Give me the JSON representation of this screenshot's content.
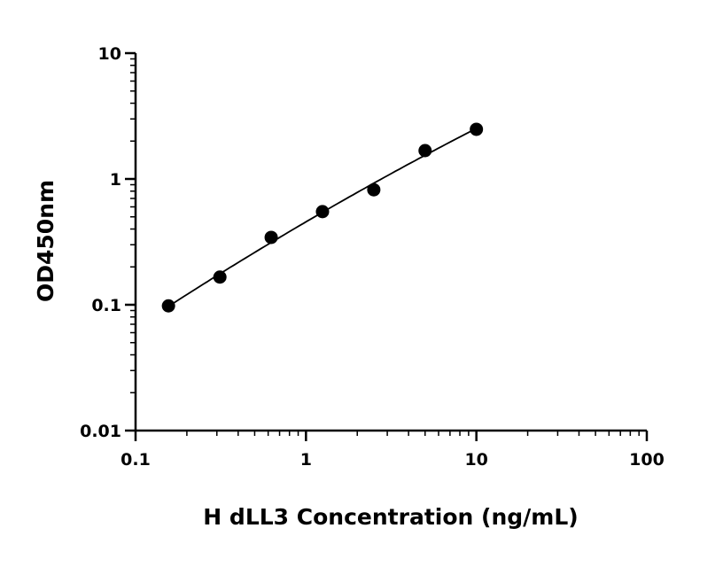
{
  "chart_data": {
    "type": "scatter",
    "title": "",
    "xlabel": "H dLL3 Concentration (ng/mL)",
    "ylabel": "OD450nm",
    "x_scale": "log",
    "y_scale": "log",
    "xlim": [
      0.1,
      100
    ],
    "ylim": [
      0.01,
      10
    ],
    "x_ticks": [
      0.1,
      1,
      10,
      100
    ],
    "x_tick_labels": [
      "0.1",
      "1",
      "10",
      "100"
    ],
    "y_ticks": [
      0.01,
      0.1,
      1,
      10
    ],
    "y_tick_labels": [
      "0.01",
      "0.1",
      "1",
      "10"
    ],
    "grid": false,
    "fit_curve": true,
    "point_color": "#000000",
    "x": [
      0.156,
      0.3125,
      0.625,
      1.25,
      2.5,
      5,
      10
    ],
    "y": [
      0.098,
      0.166,
      0.343,
      0.55,
      0.82,
      1.68,
      2.48
    ]
  }
}
